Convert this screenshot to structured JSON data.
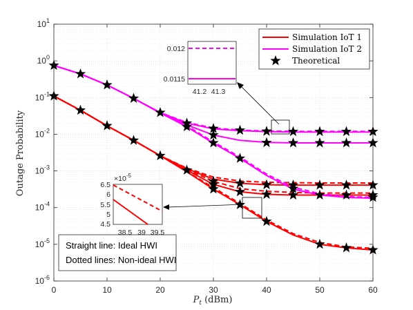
{
  "chart_data": {
    "type": "line",
    "xlabel": "P",
    "xlabel_sub": "t",
    "xlabel_unit": " (dBm)",
    "ylabel": "Outage Probability",
    "xlim": [
      0,
      60
    ],
    "ylim": [
      1e-06,
      10
    ],
    "yscale": "log",
    "grid": true,
    "x_ticks": [
      0,
      10,
      20,
      30,
      40,
      50,
      60
    ],
    "y_ticks": [
      {
        "base": "10",
        "exp": "1"
      },
      {
        "base": "10",
        "exp": "0"
      },
      {
        "base": "10",
        "exp": "-1"
      },
      {
        "base": "10",
        "exp": "-2"
      },
      {
        "base": "10",
        "exp": "-3"
      },
      {
        "base": "10",
        "exp": "-4"
      },
      {
        "base": "10",
        "exp": "-5"
      },
      {
        "base": "10",
        "exp": "-6"
      }
    ],
    "legend": {
      "position": "top-right",
      "entries": [
        {
          "label": "Simulation IoT 1",
          "color": "#ff0000",
          "kind": "line"
        },
        {
          "label": "Simulation IoT 2",
          "color": "#ff00ff",
          "kind": "line"
        },
        {
          "label": "Theoretical",
          "color": "#000000",
          "kind": "star"
        }
      ]
    },
    "x": [
      0,
      5,
      10,
      15,
      20,
      25,
      30,
      35,
      40,
      45,
      50,
      55,
      60
    ],
    "series": [
      {
        "group": "iot1",
        "color": "#ff0000",
        "dashed": false,
        "values": [
          0.11,
          0.045,
          0.017,
          0.0068,
          0.0026,
          0.00095,
          0.00032,
          0.00012,
          4.2e-05,
          1.8e-05,
          1e-05,
          8e-06,
          7e-06
        ]
      },
      {
        "group": "iot1",
        "color": "#ff0000",
        "dashed": true,
        "values": [
          0.11,
          0.045,
          0.017,
          0.0068,
          0.0026,
          0.00097,
          0.00035,
          0.00013,
          4.6e-05,
          1.95e-05,
          1.12e-05,
          8.5e-06,
          7.8e-06
        ]
      },
      {
        "group": "iot1",
        "color": "#ff0000",
        "dashed": false,
        "values": [
          0.11,
          0.045,
          0.017,
          0.0068,
          0.0026,
          0.00105,
          0.00043,
          0.00027,
          0.00023,
          0.00022,
          0.00022,
          0.00022,
          0.00022
        ]
      },
      {
        "group": "iot1",
        "color": "#ff0000",
        "dashed": true,
        "values": [
          0.11,
          0.045,
          0.017,
          0.0068,
          0.0026,
          0.0011,
          0.00052,
          0.00033,
          0.00028,
          0.00026,
          0.00025,
          0.00025,
          0.00025
        ]
      },
      {
        "group": "iot1",
        "color": "#ff0000",
        "dashed": false,
        "values": [
          0.11,
          0.045,
          0.017,
          0.0068,
          0.0026,
          0.00115,
          0.0006,
          0.00046,
          0.00042,
          0.00041,
          0.00041,
          0.00041,
          0.00041
        ]
      },
      {
        "group": "iot1",
        "color": "#ff0000",
        "dashed": true,
        "values": [
          0.11,
          0.045,
          0.017,
          0.0068,
          0.0026,
          0.0012,
          0.00068,
          0.00053,
          0.00049,
          0.00048,
          0.00047,
          0.00047,
          0.00047
        ]
      },
      {
        "group": "iot2",
        "color": "#ff00ff",
        "dashed": false,
        "values": [
          0.75,
          0.44,
          0.22,
          0.095,
          0.038,
          0.016,
          0.0057,
          0.0022,
          0.00075,
          0.00032,
          0.00022,
          0.00019,
          0.00018
        ]
      },
      {
        "group": "iot2",
        "color": "#ff00ff",
        "dashed": true,
        "values": [
          0.75,
          0.44,
          0.22,
          0.095,
          0.038,
          0.017,
          0.0062,
          0.0024,
          0.00082,
          0.00036,
          0.00024,
          0.0002,
          0.00019
        ]
      },
      {
        "group": "iot2",
        "color": "#ff00ff",
        "dashed": false,
        "values": [
          0.75,
          0.44,
          0.22,
          0.095,
          0.038,
          0.018,
          0.0095,
          0.0068,
          0.006,
          0.0058,
          0.0058,
          0.0058,
          0.0058
        ]
      },
      {
        "group": "iot2",
        "color": "#ff00ff",
        "dashed": false,
        "values": [
          0.75,
          0.44,
          0.22,
          0.095,
          0.039,
          0.02,
          0.014,
          0.0125,
          0.0118,
          0.0115,
          0.0115,
          0.0115,
          0.0115
        ]
      },
      {
        "group": "iot2",
        "color": "#ff00ff",
        "dashed": true,
        "values": [
          0.75,
          0.44,
          0.22,
          0.095,
          0.039,
          0.021,
          0.0148,
          0.013,
          0.0122,
          0.012,
          0.012,
          0.012,
          0.012
        ]
      }
    ],
    "theoretical": [
      {
        "x": 0,
        "y": 0.75
      },
      {
        "x": 5,
        "y": 0.44
      },
      {
        "x": 10,
        "y": 0.22
      },
      {
        "x": 15,
        "y": 0.095
      },
      {
        "x": 20,
        "y": 0.039
      },
      {
        "x": 25,
        "y": 0.02
      },
      {
        "x": 30,
        "y": 0.0143
      },
      {
        "x": 35,
        "y": 0.0128
      },
      {
        "x": 40,
        "y": 0.012
      },
      {
        "x": 45,
        "y": 0.0118
      },
      {
        "x": 50,
        "y": 0.0118
      },
      {
        "x": 55,
        "y": 0.0118
      },
      {
        "x": 60,
        "y": 0.0118
      },
      {
        "x": 30,
        "y": 0.0095
      },
      {
        "x": 40,
        "y": 0.0059
      },
      {
        "x": 45,
        "y": 0.0058
      },
      {
        "x": 50,
        "y": 0.0058
      },
      {
        "x": 55,
        "y": 0.0058
      },
      {
        "x": 60,
        "y": 0.0058
      },
      {
        "x": 25,
        "y": 0.016
      },
      {
        "x": 30,
        "y": 0.0058
      },
      {
        "x": 35,
        "y": 0.0022
      },
      {
        "x": 45,
        "y": 0.00033
      },
      {
        "x": 60,
        "y": 0.00019
      },
      {
        "x": 0,
        "y": 0.11
      },
      {
        "x": 5,
        "y": 0.045
      },
      {
        "x": 10,
        "y": 0.017
      },
      {
        "x": 15,
        "y": 0.0068
      },
      {
        "x": 20,
        "y": 0.0026
      },
      {
        "x": 25,
        "y": 0.00105
      },
      {
        "x": 30,
        "y": 0.00052
      },
      {
        "x": 35,
        "y": 0.00046
      },
      {
        "x": 40,
        "y": 0.00042
      },
      {
        "x": 45,
        "y": 0.00041
      },
      {
        "x": 50,
        "y": 0.00041
      },
      {
        "x": 55,
        "y": 0.00041
      },
      {
        "x": 60,
        "y": 0.00041
      },
      {
        "x": 30,
        "y": 0.00043
      },
      {
        "x": 35,
        "y": 0.00027
      },
      {
        "x": 40,
        "y": 0.00023
      },
      {
        "x": 45,
        "y": 0.00022
      },
      {
        "x": 50,
        "y": 0.00022
      },
      {
        "x": 55,
        "y": 0.00022
      },
      {
        "x": 60,
        "y": 0.00022
      },
      {
        "x": 30,
        "y": 0.00032
      },
      {
        "x": 35,
        "y": 0.00012
      },
      {
        "x": 40,
        "y": 4.2e-05
      },
      {
        "x": 50,
        "y": 1e-05
      },
      {
        "x": 55,
        "y": 8e-06
      },
      {
        "x": 60,
        "y": 7e-06
      }
    ],
    "inset_top": {
      "x_ticks": [
        "41.2",
        "41.3"
      ],
      "y_ticks": [
        "0.012",
        "0.0115"
      ],
      "lines": [
        {
          "color": "#ff00ff",
          "dashed": true,
          "value": 0.012
        },
        {
          "color": "#ff00ff",
          "dashed": false,
          "value": 0.0115
        }
      ]
    },
    "inset_bottom": {
      "exponent_label": "×10",
      "exponent_value": "-5",
      "x_ticks": [
        "38.5",
        "39",
        "39.5"
      ],
      "y_ticks": [
        "6.5",
        "6",
        "5.5",
        "5",
        "4.5"
      ],
      "ylim": [
        4.5,
        6.5
      ],
      "xlim": [
        38.5,
        39.5
      ]
    },
    "annotation": {
      "line1": "Straight line: Ideal HWI",
      "line2": "Dotted lines: Non-ideal HWI"
    }
  }
}
